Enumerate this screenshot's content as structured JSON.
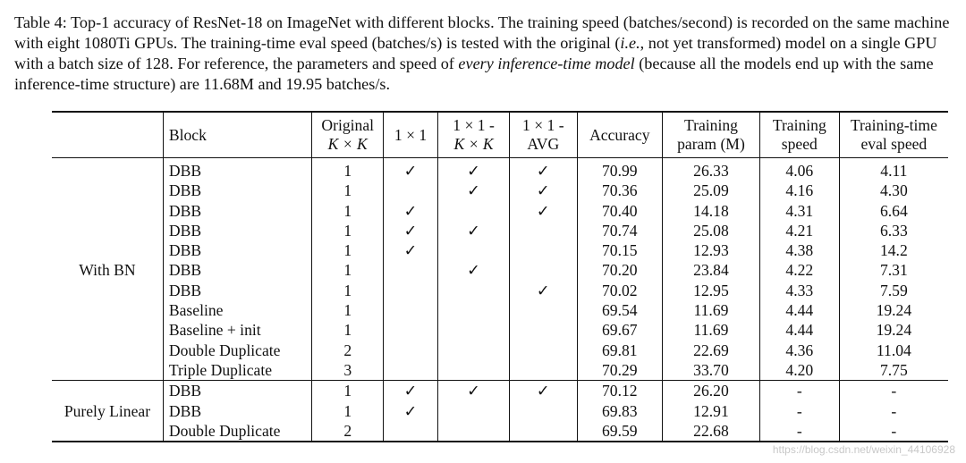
{
  "caption": {
    "label": "Table 4:",
    "text1": " Top-1 accuracy of ResNet-18 on ImageNet with different blocks. The training speed (batches/second) is recorded on the same machine with eight 1080Ti GPUs. The training-time eval speed (batches/s) is tested with the original (",
    "ie": "i.e.",
    "text2": ", not yet transformed) model on a single GPU with a batch size of 128. For reference, the parameters and speed of ",
    "em": "every inference-time model",
    "text3": " (because all the models end up with the same inference-time structure) are 11.68M and 19.95 batches/s."
  },
  "headers": {
    "block": "Block",
    "orig_1": "Original",
    "orig_2": "K × K",
    "one_by_one": "1 × 1",
    "oxk_1": "1 × 1 -",
    "oxk_2": "K × K",
    "avg_1": "1 × 1 -",
    "avg_2": "AVG",
    "accuracy": "Accuracy",
    "tparam_1": "Training",
    "tparam_2": "param (M)",
    "tspeed_1": "Training",
    "tspeed_2": "speed",
    "eval_1": "Training-time",
    "eval_2": "eval speed"
  },
  "groups": [
    {
      "name": "With BN",
      "rows": [
        {
          "block": "DBB",
          "orig": "1",
          "c1": "✓",
          "c2": "✓",
          "c3": "✓",
          "acc": "70.99",
          "param": "26.33",
          "speed": "4.06",
          "eval": "4.11"
        },
        {
          "block": "DBB",
          "orig": "1",
          "c1": "",
          "c2": "✓",
          "c3": "✓",
          "acc": "70.36",
          "param": "25.09",
          "speed": "4.16",
          "eval": "4.30"
        },
        {
          "block": "DBB",
          "orig": "1",
          "c1": "✓",
          "c2": "",
          "c3": "✓",
          "acc": "70.40",
          "param": "14.18",
          "speed": "4.31",
          "eval": "6.64"
        },
        {
          "block": "DBB",
          "orig": "1",
          "c1": "✓",
          "c2": "✓",
          "c3": "",
          "acc": "70.74",
          "param": "25.08",
          "speed": "4.21",
          "eval": "6.33"
        },
        {
          "block": "DBB",
          "orig": "1",
          "c1": "✓",
          "c2": "",
          "c3": "",
          "acc": "70.15",
          "param": "12.93",
          "speed": "4.38",
          "eval": "14.2"
        },
        {
          "block": "DBB",
          "orig": "1",
          "c1": "",
          "c2": "✓",
          "c3": "",
          "acc": "70.20",
          "param": "23.84",
          "speed": "4.22",
          "eval": "7.31"
        },
        {
          "block": "DBB",
          "orig": "1",
          "c1": "",
          "c2": "",
          "c3": "✓",
          "acc": "70.02",
          "param": "12.95",
          "speed": "4.33",
          "eval": "7.59"
        },
        {
          "block": "Baseline",
          "orig": "1",
          "c1": "",
          "c2": "",
          "c3": "",
          "acc": "69.54",
          "param": "11.69",
          "speed": "4.44",
          "eval": "19.24"
        },
        {
          "block": "Baseline + init",
          "orig": "1",
          "c1": "",
          "c2": "",
          "c3": "",
          "acc": "69.67",
          "param": "11.69",
          "speed": "4.44",
          "eval": "19.24"
        },
        {
          "block": "Double Duplicate",
          "orig": "2",
          "c1": "",
          "c2": "",
          "c3": "",
          "acc": "69.81",
          "param": "22.69",
          "speed": "4.36",
          "eval": "11.04"
        },
        {
          "block": "Triple Duplicate",
          "orig": "3",
          "c1": "",
          "c2": "",
          "c3": "",
          "acc": "70.29",
          "param": "33.70",
          "speed": "4.20",
          "eval": "7.75"
        }
      ]
    },
    {
      "name": "Purely Linear",
      "rows": [
        {
          "block": "DBB",
          "orig": "1",
          "c1": "✓",
          "c2": "✓",
          "c3": "✓",
          "acc": "70.12",
          "param": "26.20",
          "speed": "-",
          "eval": "-"
        },
        {
          "block": "DBB",
          "orig": "1",
          "c1": "✓",
          "c2": "",
          "c3": "",
          "acc": "69.83",
          "param": "12.91",
          "speed": "-",
          "eval": "-"
        },
        {
          "block": "Double Duplicate",
          "orig": "2",
          "c1": "",
          "c2": "",
          "c3": "",
          "acc": "69.59",
          "param": "22.68",
          "speed": "-",
          "eval": "-"
        }
      ]
    }
  ],
  "watermark": "https://blog.csdn.net/weixin_44106928"
}
